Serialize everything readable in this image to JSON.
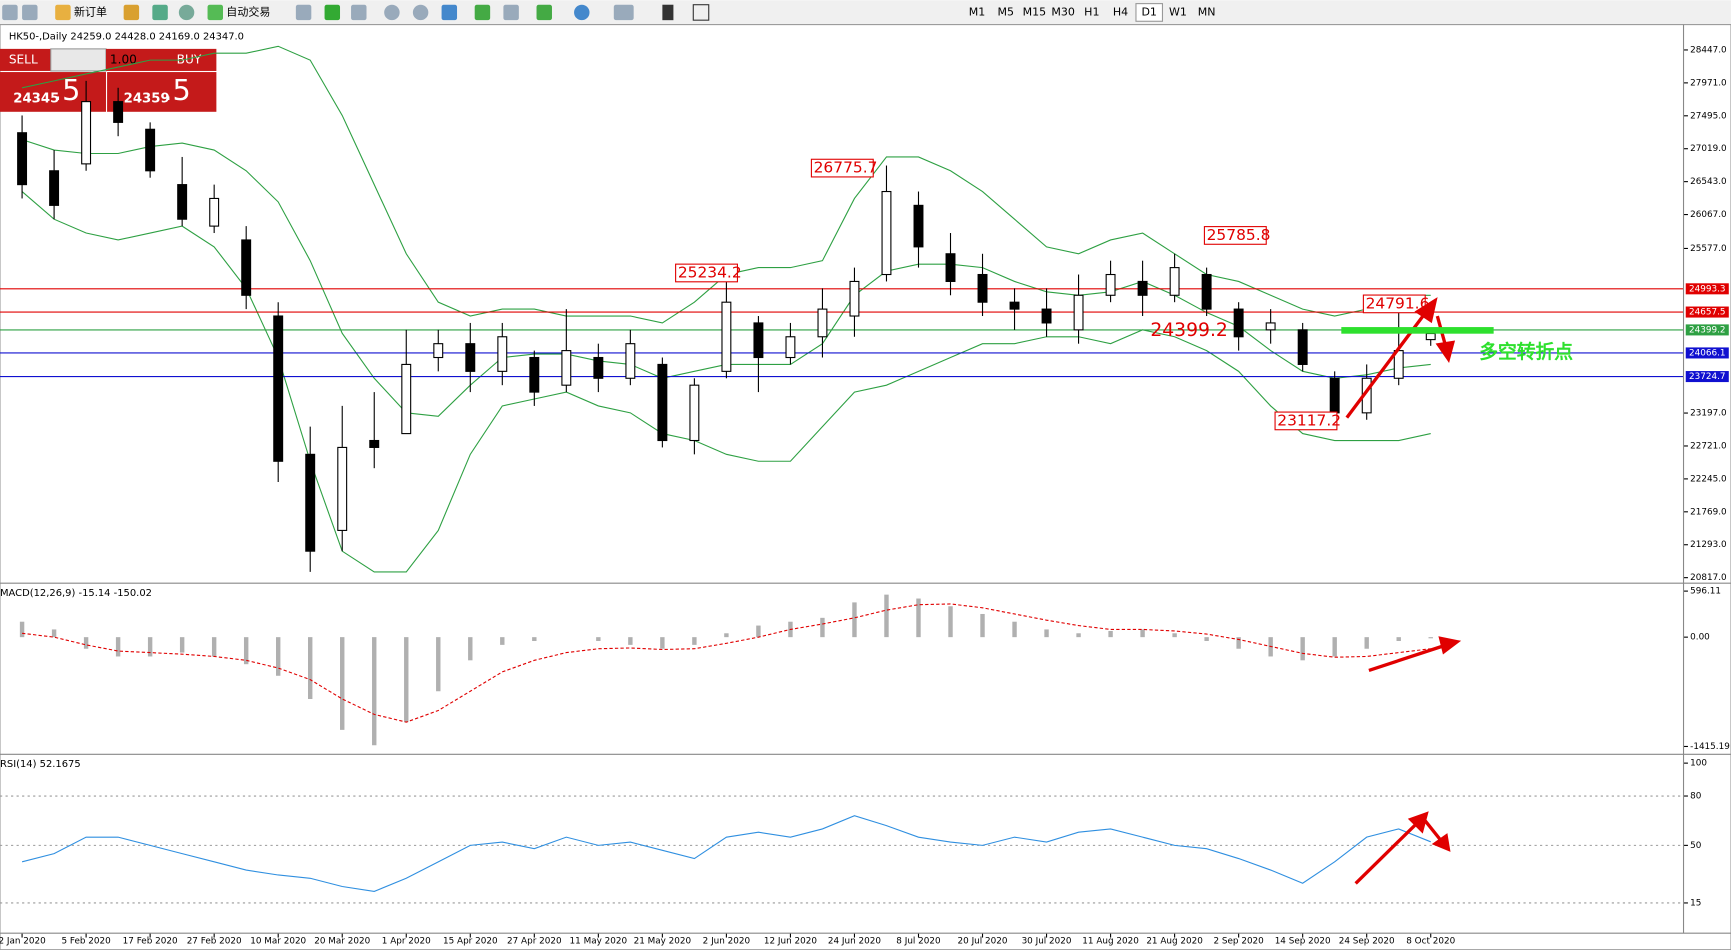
{
  "toolbar": {
    "new_order": "新订单",
    "auto_trading": "自动交易",
    "timeframes": [
      "M1",
      "M5",
      "M15",
      "M30",
      "H1",
      "H4",
      "D1",
      "W1",
      "MN"
    ]
  },
  "trade_panel": {
    "sell": "SELL",
    "buy": "BUY",
    "lots": "1.00",
    "bid_main": "24345",
    "bid_pips": ".5",
    "ask_main": "24359",
    "ask_pips": ".5"
  },
  "chart_data": [
    {
      "type": "candlestick",
      "title": "HK50-,Daily 24259.0 24428.0 24169.0 24347.0",
      "categories": [
        "2 Jan 2020",
        null,
        "5 Feb 2020",
        null,
        "17 Feb 2020",
        null,
        "27 Feb 2020",
        null,
        "10 Mar 2020",
        null,
        "20 Mar 2020",
        null,
        "1 Apr 2020",
        null,
        "15 Apr 2020",
        null,
        "27 Apr 2020",
        null,
        "11 May 2020",
        null,
        "21 May 2020",
        null,
        "2 Jun 2020",
        null,
        "12 Jun 2020",
        null,
        "24 Jun 2020",
        null,
        "8 Jul 2020",
        null,
        "20 Jul 2020",
        null,
        "30 Jul 2020",
        null,
        "11 Aug 2020",
        null,
        "21 Aug 2020",
        null,
        "2 Sep 2020",
        null,
        "14 Sep 2020",
        null,
        "24 Sep 2020",
        null,
        "8 Oct 2020"
      ],
      "open": [
        27250,
        26700,
        26800,
        27700,
        27300,
        26500,
        25900,
        25700,
        24600,
        22600,
        21500,
        22800,
        22900,
        24000,
        24200,
        23800,
        24000,
        23600,
        24000,
        23700,
        23900,
        22800,
        23800,
        24500,
        24000,
        24300,
        24600,
        25200,
        26200,
        25500,
        25200,
        24800,
        24700,
        24400,
        24900,
        25100,
        24900,
        25200,
        24700,
        24400,
        24400,
        23700,
        23200,
        23700,
        24259
      ],
      "high": [
        27500,
        27000,
        28000,
        27900,
        27400,
        26900,
        26500,
        25900,
        24800,
        23000,
        23300,
        23500,
        24400,
        24400,
        24500,
        24500,
        24100,
        24700,
        24200,
        24400,
        24000,
        23700,
        25300,
        24600,
        24500,
        25000,
        25300,
        26776,
        26400,
        25800,
        25500,
        25000,
        25000,
        25200,
        25400,
        25400,
        25500,
        25300,
        24800,
        24700,
        24500,
        23800,
        23900,
        24792,
        24428
      ],
      "low": [
        26300,
        26000,
        26700,
        27200,
        26600,
        25900,
        25800,
        24700,
        22200,
        20900,
        21200,
        22400,
        22900,
        23800,
        23500,
        23600,
        23300,
        23500,
        23500,
        23600,
        22700,
        22600,
        23700,
        23500,
        23900,
        24000,
        24300,
        25100,
        25300,
        24900,
        24600,
        24400,
        24300,
        24200,
        24800,
        24600,
        24800,
        24600,
        24100,
        24200,
        23800,
        23117,
        23100,
        23600,
        24169
      ],
      "close": [
        26500,
        26200,
        27700,
        27400,
        26700,
        26000,
        26300,
        24900,
        22500,
        21200,
        22700,
        22700,
        23900,
        24200,
        23800,
        24300,
        23500,
        24100,
        23700,
        24200,
        22800,
        23600,
        24800,
        24000,
        24300,
        24700,
        25100,
        26400,
        25600,
        25100,
        24800,
        24700,
        24500,
        24900,
        25200,
        24900,
        25300,
        24700,
        24300,
        24500,
        23900,
        23200,
        23700,
        24100,
        24347
      ],
      "bands": {
        "color": "#2ea043",
        "upper": [
          27900,
          28000,
          28100,
          28200,
          28300,
          28300,
          28400,
          28400,
          28500,
          28300,
          27500,
          26500,
          25500,
          24800,
          24600,
          24700,
          24700,
          24600,
          24600,
          24600,
          24500,
          24800,
          25200,
          25300,
          25300,
          25400,
          26300,
          26900,
          26900,
          26700,
          26400,
          26000,
          25600,
          25500,
          25700,
          25800,
          25500,
          25200,
          25100,
          24900,
          24700,
          24600,
          24700,
          24900,
          24900
        ],
        "middle": [
          27150,
          27000,
          26950,
          26950,
          27050,
          27100,
          27000,
          26700,
          26250,
          25400,
          24350,
          23700,
          23200,
          23150,
          23600,
          24000,
          24050,
          24050,
          23950,
          23900,
          23700,
          23800,
          23900,
          23900,
          23900,
          24200,
          24900,
          25250,
          25350,
          25350,
          25300,
          25100,
          24950,
          24900,
          24950,
          25100,
          24900,
          24650,
          24450,
          24100,
          23800,
          23700,
          23750,
          23850,
          23900
        ],
        "lower": [
          26400,
          26000,
          25800,
          25700,
          25800,
          25900,
          25600,
          25000,
          24000,
          22500,
          21200,
          20900,
          20900,
          21500,
          22600,
          23300,
          23400,
          23500,
          23300,
          23200,
          22900,
          22800,
          22600,
          22500,
          22500,
          23000,
          23500,
          23600,
          23800,
          24000,
          24200,
          24200,
          24300,
          24300,
          24200,
          24400,
          24300,
          24100,
          23800,
          23300,
          22900,
          22800,
          22800,
          22800,
          22900
        ]
      },
      "ylim": [
        20753,
        28750
      ],
      "yticks": [
        {
          "value": 28447,
          "label": "28447.0"
        },
        {
          "value": 27971,
          "label": "27971.0"
        },
        {
          "value": 27495,
          "label": "27495.0"
        },
        {
          "value": 27019,
          "label": "27019.0"
        },
        {
          "value": 26543,
          "label": "26543.0"
        },
        {
          "value": 26067,
          "label": "26067.0"
        },
        {
          "value": 25577,
          "label": "25577.0"
        },
        {
          "value": 23197,
          "label": "23197.0"
        },
        {
          "value": 22721,
          "label": "22721.0"
        },
        {
          "value": 22245,
          "label": "22245.0"
        },
        {
          "value": 21769,
          "label": "21769.0"
        },
        {
          "value": 21293,
          "label": "21293.0"
        },
        {
          "value": 20817,
          "label": "20817.0"
        }
      ],
      "hlines": [
        {
          "value": 24993.3,
          "color": "#e00000"
        },
        {
          "value": 24657.5,
          "color": "#e00000"
        },
        {
          "value": 24399.2,
          "color": "#2ea043"
        },
        {
          "value": 24066.1,
          "color": "#1010d0"
        },
        {
          "value": 23724.7,
          "color": "#1010d0"
        }
      ],
      "annotations": [
        26775.7,
        25234.2,
        25785.8,
        24791.6,
        24399.2,
        23117.2
      ],
      "note": "多空转折点"
    },
    {
      "type": "macd",
      "title": "MACD(12,26,9) -15.14 -150.02",
      "histogram": [
        200,
        100,
        -150,
        -250,
        -250,
        -200,
        -250,
        -350,
        -500,
        -800,
        -1200,
        -1400,
        -1100,
        -700,
        -300,
        -100,
        -50,
        0,
        -50,
        -100,
        -150,
        -100,
        50,
        150,
        200,
        250,
        450,
        550,
        500,
        400,
        300,
        200,
        100,
        50,
        80,
        100,
        50,
        -50,
        -150,
        -250,
        -300,
        -250,
        -150,
        -50,
        -15.14
      ],
      "signal": [
        50,
        0,
        -100,
        -180,
        -200,
        -220,
        -250,
        -300,
        -400,
        -550,
        -800,
        -1000,
        -1100,
        -950,
        -700,
        -450,
        -300,
        -200,
        -150,
        -140,
        -160,
        -150,
        -80,
        0,
        100,
        170,
        250,
        350,
        420,
        430,
        380,
        300,
        220,
        150,
        100,
        100,
        80,
        40,
        -30,
        -120,
        -210,
        -260,
        -250,
        -200,
        -150.02
      ],
      "hist_color": "#b0b0b0",
      "signal_color": "#e00000",
      "ylim": [
        -1488,
        670
      ],
      "yticks": [
        {
          "value": 596.11,
          "label": "596.11"
        },
        {
          "value": 0,
          "label": "0.00"
        },
        {
          "value": -1415.19,
          "label": "-1415.19"
        }
      ]
    },
    {
      "type": "line",
      "title": "RSI(14) 52.1675",
      "values": [
        40,
        45,
        55,
        55,
        50,
        45,
        40,
        35,
        32,
        30,
        25,
        22,
        30,
        40,
        50,
        52,
        48,
        55,
        50,
        52,
        47,
        42,
        55,
        58,
        55,
        60,
        68,
        62,
        55,
        52,
        50,
        55,
        52,
        58,
        60,
        55,
        50,
        48,
        42,
        35,
        27,
        40,
        55,
        60,
        52.1675
      ],
      "color": "#2f8fe0",
      "ylim": [
        0,
        100
      ],
      "yticks": [
        15,
        50,
        80,
        100
      ],
      "grid": [
        15,
        50,
        80
      ]
    }
  ]
}
